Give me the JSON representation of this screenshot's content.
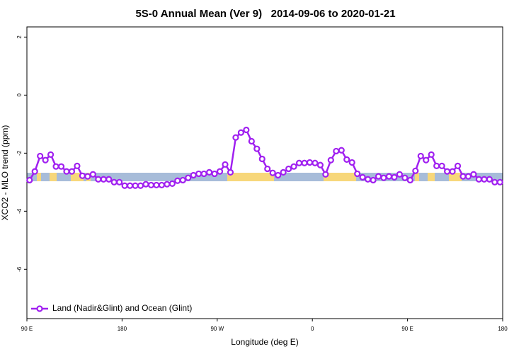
{
  "chart_data": {
    "type": "line",
    "title": "5S-0 Annual Mean (Ver 9)   2014-09-06 to 2020-01-21",
    "x_label": "Longitude (deg E)",
    "y_label": "XCO2 - MLO trend (ppm)",
    "xlim": [
      90,
      540
    ],
    "ylim": [
      -7.7,
      2.35
    ],
    "xticks": [
      {
        "value": 90,
        "label": "90 E"
      },
      180,
      {
        "value": 270,
        "label": "90 W"
      },
      {
        "value": 360,
        "label": "0"
      },
      {
        "value": 450,
        "label": "90 E"
      },
      {
        "value": 540,
        "label": "180"
      }
    ],
    "yticks": [
      2,
      0,
      -2,
      -4,
      -6
    ],
    "grid": false,
    "legend": "bottom-left",
    "x": [
      92.5,
      97.5,
      102.5,
      107.5,
      112.5,
      117.5,
      122.5,
      127.5,
      132.5,
      137.5,
      142.5,
      147.5,
      152.5,
      157.5,
      162.5,
      167.5,
      172.5,
      177.5,
      182.5,
      187.5,
      192.5,
      197.5,
      202.5,
      207.5,
      212.5,
      217.5,
      222.5,
      227.5,
      232.5,
      237.5,
      242.5,
      247.5,
      252.5,
      257.5,
      262.5,
      267.5,
      272.5,
      277.5,
      282.5,
      287.5,
      292.5,
      297.5,
      302.5,
      307.5,
      312.5,
      317.5,
      322.5,
      327.5,
      332.5,
      337.5,
      342.5,
      347.5,
      352.5,
      357.5,
      362.5,
      367.5,
      372.5,
      377.5,
      382.5,
      387.5,
      392.5,
      397.5,
      402.5,
      407.5,
      412.5,
      417.5,
      422.5,
      427.5,
      432.5,
      437.5,
      442.5,
      447.5,
      452.5,
      457.5,
      462.5,
      467.5,
      472.5,
      477.5,
      482.5,
      487.5,
      492.5,
      497.5,
      502.5,
      507.5,
      512.5,
      517.5,
      522.5,
      527.5,
      532.5,
      537.5
    ],
    "series": [
      {
        "name": "Land (Nadir&Glint) and Ocean (Glint)",
        "color": "#a020f0",
        "values": [
          -2.93,
          -2.63,
          -2.1,
          -2.24,
          -2.05,
          -2.46,
          -2.46,
          -2.63,
          -2.63,
          -2.44,
          -2.78,
          -2.8,
          -2.73,
          -2.9,
          -2.9,
          -2.9,
          -3.0,
          -3.0,
          -3.12,
          -3.12,
          -3.12,
          -3.12,
          -3.07,
          -3.1,
          -3.1,
          -3.1,
          -3.07,
          -3.05,
          -2.95,
          -2.93,
          -2.85,
          -2.76,
          -2.71,
          -2.71,
          -2.66,
          -2.71,
          -2.63,
          -2.39,
          -2.66,
          -1.46,
          -1.29,
          -1.2,
          -1.59,
          -1.85,
          -2.2,
          -2.54,
          -2.68,
          -2.76,
          -2.66,
          -2.54,
          -2.46,
          -2.34,
          -2.34,
          -2.32,
          -2.34,
          -2.41,
          -2.73,
          -2.24,
          -1.93,
          -1.9,
          -2.22,
          -2.32,
          -2.71,
          -2.83,
          -2.9,
          -2.93,
          -2.8,
          -2.85,
          -2.8,
          -2.83,
          -2.73,
          -2.85,
          -2.93,
          -2.61,
          -2.1,
          -2.24,
          -2.05,
          -2.44,
          -2.44,
          -2.63,
          -2.63,
          -2.44,
          -2.8,
          -2.8,
          -2.73,
          -2.9,
          -2.9,
          -2.9,
          -3.0,
          -3.0
        ]
      }
    ]
  }
}
